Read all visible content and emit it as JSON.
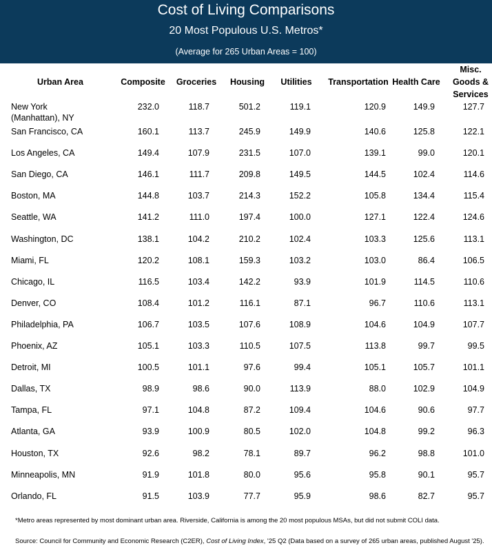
{
  "header": {
    "title": "Cost of Living Comparisons",
    "subtitle": "20 Most Populous U.S. Metros*",
    "note": "(Average for 265 Urban Areas = 100)"
  },
  "table": {
    "columns": [
      "Urban Area",
      "Composite",
      "Groceries",
      "Housing",
      "Utilities",
      "Transportation",
      "Health Care",
      "Misc. Goods & Services"
    ],
    "rows": [
      [
        "New York (Manhattan), NY",
        "232.0",
        "118.7",
        "501.2",
        "119.1",
        "120.9",
        "149.9",
        "127.7"
      ],
      [
        "San Francisco, CA",
        "160.1",
        "113.7",
        "245.9",
        "149.9",
        "140.6",
        "125.8",
        "122.1"
      ],
      [
        "Los Angeles, CA",
        "149.4",
        "107.9",
        "231.5",
        "107.0",
        "139.1",
        "99.0",
        "120.1"
      ],
      [
        "San Diego, CA",
        "146.1",
        "111.7",
        "209.8",
        "149.5",
        "144.5",
        "102.4",
        "114.6"
      ],
      [
        "Boston, MA",
        "144.8",
        "103.7",
        "214.3",
        "152.2",
        "105.8",
        "134.4",
        "115.4"
      ],
      [
        "Seattle, WA",
        "141.2",
        "111.0",
        "197.4",
        "100.0",
        "127.1",
        "122.4",
        "124.6"
      ],
      [
        "Washington, DC",
        "138.1",
        "104.2",
        "210.2",
        "102.4",
        "103.3",
        "125.6",
        "113.1"
      ],
      [
        "Miami, FL",
        "120.2",
        "108.1",
        "159.3",
        "103.2",
        "103.0",
        "86.4",
        "106.5"
      ],
      [
        "Chicago, IL",
        "116.5",
        "103.4",
        "142.2",
        "93.9",
        "101.9",
        "114.5",
        "110.6"
      ],
      [
        "Denver, CO",
        "108.4",
        "101.2",
        "116.1",
        "87.1",
        "96.7",
        "110.6",
        "113.1"
      ],
      [
        "Philadelphia, PA",
        "106.7",
        "103.5",
        "107.6",
        "108.9",
        "104.6",
        "104.9",
        "107.7"
      ],
      [
        "Phoenix, AZ",
        "105.1",
        "103.3",
        "110.5",
        "107.5",
        "113.8",
        "99.7",
        "99.5"
      ],
      [
        "Detroit, MI",
        "100.5",
        "101.1",
        "97.6",
        "99.4",
        "105.1",
        "105.7",
        "101.1"
      ],
      [
        "Dallas, TX",
        "98.9",
        "98.6",
        "90.0",
        "113.9",
        "88.0",
        "102.9",
        "104.9"
      ],
      [
        "Tampa, FL",
        "97.1",
        "104.8",
        "87.2",
        "109.4",
        "104.6",
        "90.6",
        "97.7"
      ],
      [
        "Atlanta, GA",
        "93.9",
        "100.9",
        "80.5",
        "102.0",
        "104.8",
        "99.2",
        "96.3"
      ],
      [
        "Houston, TX",
        "92.6",
        "98.2",
        "78.1",
        "89.7",
        "96.2",
        "98.8",
        "101.0"
      ],
      [
        "Minneapolis, MN",
        "91.9",
        "101.8",
        "80.0",
        "95.6",
        "95.8",
        "90.1",
        "95.7"
      ],
      [
        "Orlando, FL",
        "91.5",
        "103.9",
        "77.7",
        "95.9",
        "98.6",
        "82.7",
        "95.7"
      ]
    ]
  },
  "footnote": "*Metro areas represented by most dominant urban area. Riverside, California is among the 20 most populous MSAs, but did not submit COLI data.",
  "source": [
    "Source: Council for Community and Economic Research (C2ER), ",
    "Cost of Living Index",
    ", '25 Q2 (Data based on a survey of 265 urban areas, published August '25)."
  ]
}
